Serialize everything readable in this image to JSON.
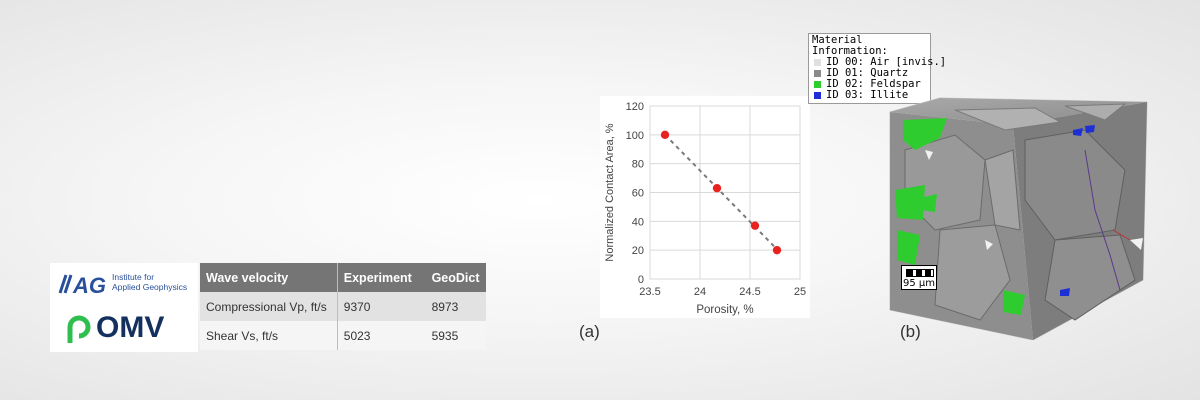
{
  "logos": {
    "iag_line1": "Institute for",
    "iag_line2": "Applied Geophysics",
    "omv_text": "OMV"
  },
  "table": {
    "headers": [
      "Wave velocity",
      "Experiment",
      "GeoDict"
    ],
    "rows": [
      [
        "Compressional Vp, ft/s",
        "9370",
        "8973"
      ],
      [
        "Shear Vs, ft/s",
        "5023",
        "5935"
      ]
    ]
  },
  "chart_data": {
    "type": "scatter",
    "x": [
      23.65,
      24.17,
      24.55,
      24.77
    ],
    "y": [
      100,
      63,
      37,
      20
    ],
    "xlabel": "Porosity, %",
    "ylabel": "Normalized Contact Area, %",
    "xlim": [
      23.5,
      25
    ],
    "ylim": [
      0,
      120
    ],
    "xticks": [
      "23.5",
      "24",
      "24.5",
      "25"
    ],
    "yticks": [
      "0",
      "20",
      "40",
      "60",
      "80",
      "100",
      "120"
    ],
    "grid": true,
    "trendline": "dashed",
    "point_color": "#e8231f"
  },
  "labels": {
    "a": "(a)",
    "b": "(b)"
  },
  "legend": {
    "title": "Material Information:",
    "items": [
      {
        "label": "ID 00: Air [invis.]",
        "color": "#e0e0e0"
      },
      {
        "label": "ID 01: Quartz",
        "color": "#8a8a8a"
      },
      {
        "label": "ID 02: Feldspar",
        "color": "#2ecc2e"
      },
      {
        "label": "ID 03: Illite",
        "color": "#1f2fd6"
      }
    ]
  },
  "scalebar": {
    "label": "95 µm"
  }
}
